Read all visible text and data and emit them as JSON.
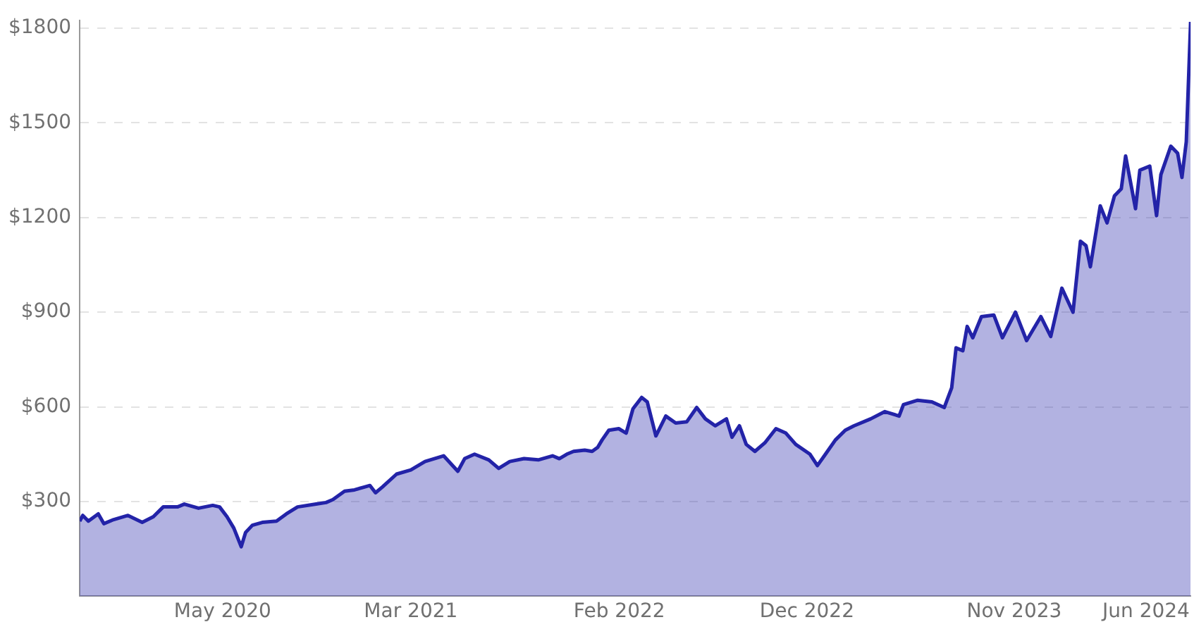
{
  "chart_data": {
    "type": "area",
    "x": [
      "2019-09-27",
      "2019-10-02",
      "2019-10-11",
      "2019-10-27",
      "2019-11-05",
      "2019-11-21",
      "2019-12-14",
      "2020-01-06",
      "2020-01-24",
      "2020-02-09",
      "2020-03-03",
      "2020-03-14",
      "2020-04-06",
      "2020-04-29",
      "2020-05-10",
      "2020-05-22",
      "2020-06-02",
      "2020-06-14",
      "2020-06-21",
      "2020-07-02",
      "2020-07-18",
      "2020-08-10",
      "2020-08-26",
      "2020-09-13",
      "2020-10-13",
      "2020-10-29",
      "2020-11-09",
      "2020-11-28",
      "2020-12-14",
      "2020-12-30",
      "2021-01-08",
      "2021-01-17",
      "2021-01-28",
      "2021-02-20",
      "2021-03-15",
      "2021-04-07",
      "2021-05-07",
      "2021-05-30",
      "2021-06-10",
      "2021-06-26",
      "2021-07-19",
      "2021-08-04",
      "2021-08-22",
      "2021-09-14",
      "2021-10-07",
      "2021-10-30",
      "2021-11-10",
      "2021-11-22",
      "2021-12-03",
      "2021-12-21",
      "2022-01-02",
      "2022-01-11",
      "2022-01-18",
      "2022-01-29",
      "2022-02-14",
      "2022-02-26",
      "2022-03-09",
      "2022-03-23",
      "2022-04-01",
      "2022-04-15",
      "2022-05-01",
      "2022-05-17",
      "2022-06-04",
      "2022-06-20",
      "2022-07-04",
      "2022-07-20",
      "2022-08-07",
      "2022-08-16",
      "2022-08-28",
      "2022-09-08",
      "2022-09-22",
      "2022-10-08",
      "2022-10-26",
      "2022-11-11",
      "2022-11-27",
      "2022-12-20",
      "2023-01-01",
      "2023-01-14",
      "2023-01-30",
      "2023-02-15",
      "2023-03-01",
      "2023-03-28",
      "2023-04-20",
      "2023-05-13",
      "2023-05-20",
      "2023-06-12",
      "2023-07-05",
      "2023-07-25",
      "2023-08-06",
      "2023-08-13",
      "2023-08-24",
      "2023-08-31",
      "2023-09-09",
      "2023-09-23",
      "2023-10-13",
      "2023-10-27",
      "2023-11-17",
      "2023-12-05",
      "2023-12-28",
      "2024-01-13",
      "2024-01-31",
      "2024-02-18",
      "2024-03-01",
      "2024-03-10",
      "2024-03-17",
      "2024-04-02",
      "2024-04-13",
      "2024-04-25",
      "2024-05-06",
      "2024-05-13",
      "2024-05-29",
      "2024-06-05",
      "2024-06-21",
      "2024-07-02",
      "2024-07-09",
      "2024-07-25",
      "2024-08-05",
      "2024-08-12",
      "2024-08-19",
      "2024-08-24",
      "2024-08-26"
    ],
    "series": [
      {
        "color": "#2323a8",
        "values": [
          238,
          256,
          238,
          261,
          230,
          243,
          256,
          234,
          252,
          283,
          283,
          292,
          279,
          288,
          283,
          252,
          216,
          157,
          202,
          225,
          234,
          238,
          261,
          283,
          292,
          297,
          306,
          333,
          337,
          346,
          351,
          328,
          346,
          387,
          400,
          427,
          445,
          396,
          436,
          450,
          432,
          405,
          427,
          436,
          432,
          445,
          436,
          450,
          459,
          463,
          459,
          472,
          495,
          526,
          531,
          517,
          594,
          630,
          616,
          508,
          571,
          549,
          553,
          598,
          562,
          540,
          562,
          504,
          540,
          481,
          459,
          486,
          531,
          517,
          481,
          450,
          414,
          450,
          495,
          526,
          540,
          562,
          585,
          571,
          607,
          621,
          616,
          598,
          661,
          787,
          778,
          855,
          819,
          886,
          891,
          819,
          900,
          810,
          886,
          823,
          976,
          900,
          1125,
          1111,
          1044,
          1237,
          1183,
          1269,
          1291,
          1395,
          1228,
          1350,
          1363,
          1206,
          1336,
          1426,
          1404,
          1327,
          1440,
          1710,
          1820
        ]
      }
    ],
    "xlim": [
      "2019-09-27",
      "2024-08-26"
    ],
    "xticks": [
      {
        "value": "2020-05-15",
        "label": "May 2020"
      },
      {
        "value": "2021-03-15",
        "label": "Mar 2021"
      },
      {
        "value": "2022-02-15",
        "label": "Feb 2022"
      },
      {
        "value": "2022-12-15",
        "label": "Dec 2022"
      },
      {
        "value": "2023-11-15",
        "label": "Nov 2023"
      },
      {
        "value": "2024-06-15",
        "label": "Jun 2024"
      }
    ],
    "ylim": [
      0,
      1825
    ],
    "yticks": [
      {
        "value": 300,
        "label": "$300"
      },
      {
        "value": 600,
        "label": "$600"
      },
      {
        "value": 900,
        "label": "$900"
      },
      {
        "value": 1200,
        "label": "$1200"
      },
      {
        "value": 1500,
        "label": "$1500"
      },
      {
        "value": 1800,
        "label": "$1800"
      }
    ],
    "grid": "y"
  }
}
